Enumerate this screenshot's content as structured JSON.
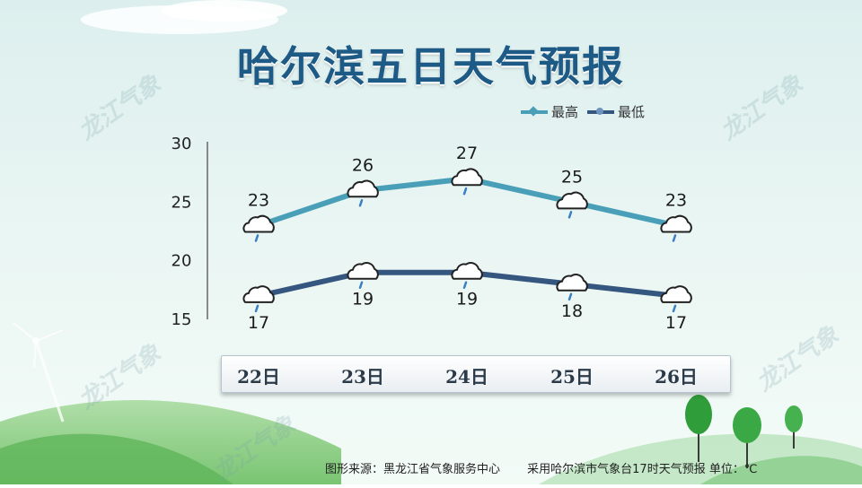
{
  "title": "哈尔滨五日天气预报",
  "watermark": "龙江气象",
  "footer": {
    "source": "图形来源：黑龙江省气象服务中心",
    "note": "采用哈尔滨市气象台17时天气预报 单位：℃"
  },
  "colors": {
    "high": "#4a9fb8",
    "low": "#34567f",
    "title": "#1d5a86"
  },
  "chart_data": {
    "type": "line",
    "categories": [
      "22日",
      "23日",
      "24日",
      "25日",
      "26日"
    ],
    "series": [
      {
        "name": "最高",
        "values": [
          23,
          26,
          27,
          25,
          23
        ]
      },
      {
        "name": "最低",
        "values": [
          17,
          19,
          19,
          18,
          17
        ]
      }
    ],
    "yticks": [
      15,
      20,
      25,
      30
    ],
    "ylim": [
      15,
      30
    ],
    "grid": false,
    "legend": "top-right",
    "weather_icon": "shower-cloud-icon"
  }
}
